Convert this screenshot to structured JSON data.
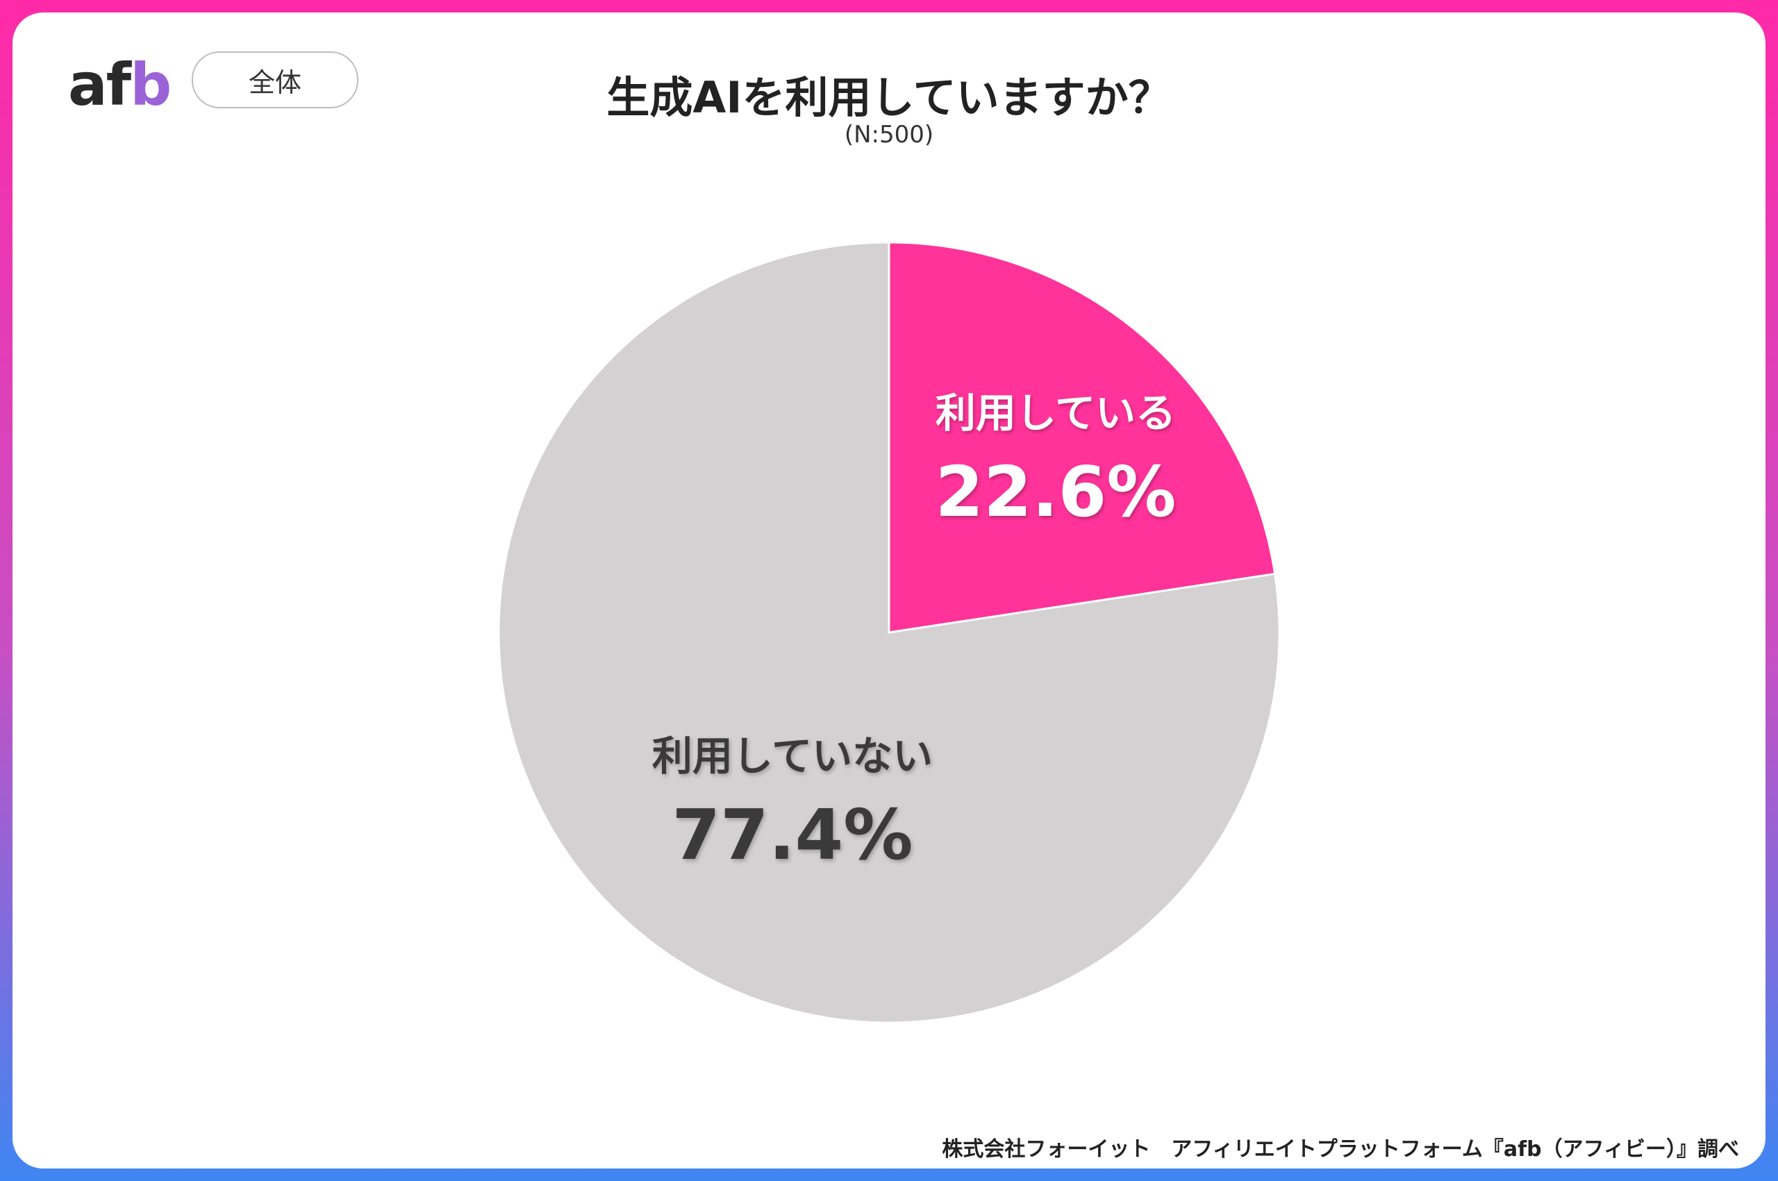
{
  "logo": {
    "text_main": "af",
    "text_accent": "b"
  },
  "segment": {
    "label": "全体"
  },
  "header": {
    "title": "生成AIを利用していますか？",
    "subtitle": "(N:500)"
  },
  "chart_data": {
    "type": "pie",
    "title": "生成AIを利用していますか？",
    "subtitle": "(N:500)",
    "slices": [
      {
        "label": "利用している",
        "value": 22.6,
        "display": "22.6%",
        "color": "#ff3399"
      },
      {
        "label": "利用していない",
        "value": 77.4,
        "display": "77.4%",
        "color": "#d4d1d2"
      }
    ],
    "start_angle": "12 o'clock",
    "direction": "clockwise"
  },
  "footer": {
    "source": "株式会社フォーイット　アフィリエイトプラットフォーム『afb（アフィビー）』調べ"
  },
  "colors": {
    "frame_top": "#ff2aa8",
    "frame_bottom": "#3f86f2",
    "accent": "#ff3399"
  }
}
